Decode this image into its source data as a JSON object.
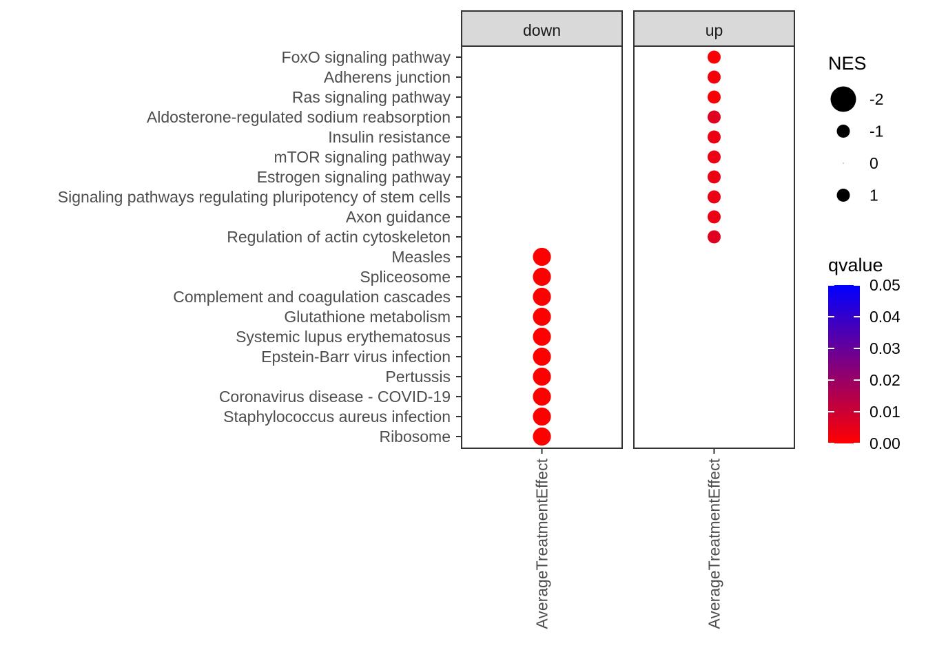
{
  "chart_data": {
    "type": "scatter",
    "facets": [
      "down",
      "up"
    ],
    "x_category": "AverageTreatmentEffect",
    "pathways": [
      "FoxO signaling pathway",
      "Adherens junction",
      "Ras signaling pathway",
      "Aldosterone-regulated sodium reabsorption",
      "Insulin resistance",
      "mTOR signaling pathway",
      "Estrogen signaling pathway",
      "Signaling pathways regulating pluripotency of stem cells",
      "Axon guidance",
      "Regulation of actin cytoskeleton",
      "Measles",
      "Spliceosome",
      "Complement and coagulation cascades",
      "Glutathione metabolism",
      "Systemic lupus erythematosus",
      "Epstein-Barr virus infection",
      "Pertussis",
      "Coronavirus disease - COVID-19",
      "Staphylococcus aureus infection",
      "Ribosome"
    ],
    "points": [
      {
        "facet": "up",
        "pathway": "FoxO signaling pathway",
        "NES": 1.0,
        "qvalue": 0.001
      },
      {
        "facet": "up",
        "pathway": "Adherens junction",
        "NES": 1.0,
        "qvalue": 0.002
      },
      {
        "facet": "up",
        "pathway": "Ras signaling pathway",
        "NES": 1.0,
        "qvalue": 0.001
      },
      {
        "facet": "up",
        "pathway": "Aldosterone-regulated sodium reabsorption",
        "NES": 1.0,
        "qvalue": 0.006
      },
      {
        "facet": "up",
        "pathway": "Insulin resistance",
        "NES": 1.0,
        "qvalue": 0.004
      },
      {
        "facet": "up",
        "pathway": "mTOR signaling pathway",
        "NES": 1.0,
        "qvalue": 0.004
      },
      {
        "facet": "up",
        "pathway": "Estrogen signaling pathway",
        "NES": 1.0,
        "qvalue": 0.004
      },
      {
        "facet": "up",
        "pathway": "Signaling pathways regulating pluripotency of stem cells",
        "NES": 1.0,
        "qvalue": 0.004
      },
      {
        "facet": "up",
        "pathway": "Axon guidance",
        "NES": 1.0,
        "qvalue": 0.004
      },
      {
        "facet": "up",
        "pathway": "Regulation of actin cytoskeleton",
        "NES": 1.0,
        "qvalue": 0.006
      },
      {
        "facet": "down",
        "pathway": "Measles",
        "NES": -1.4,
        "qvalue": 0.0
      },
      {
        "facet": "down",
        "pathway": "Spliceosome",
        "NES": -1.4,
        "qvalue": 0.0
      },
      {
        "facet": "down",
        "pathway": "Complement and coagulation cascades",
        "NES": -1.4,
        "qvalue": 0.0
      },
      {
        "facet": "down",
        "pathway": "Glutathione metabolism",
        "NES": -1.4,
        "qvalue": 0.0
      },
      {
        "facet": "down",
        "pathway": "Systemic lupus erythematosus",
        "NES": -1.4,
        "qvalue": 0.0
      },
      {
        "facet": "down",
        "pathway": "Epstein-Barr virus infection",
        "NES": -1.4,
        "qvalue": 0.0
      },
      {
        "facet": "down",
        "pathway": "Pertussis",
        "NES": -1.4,
        "qvalue": 0.0
      },
      {
        "facet": "down",
        "pathway": "Coronavirus disease - COVID-19",
        "NES": -1.4,
        "qvalue": 0.0
      },
      {
        "facet": "down",
        "pathway": "Staphylococcus aureus infection",
        "NES": -1.4,
        "qvalue": 0.0
      },
      {
        "facet": "down",
        "pathway": "Ribosome",
        "NES": -1.4,
        "qvalue": 0.0
      }
    ],
    "legend_size": {
      "title": "NES",
      "labels": [
        "-2",
        "-1",
        "0",
        "1"
      ],
      "values": [
        -2,
        -1,
        0,
        1
      ]
    },
    "legend_color": {
      "title": "qvalue",
      "labels": [
        "0.05",
        "0.04",
        "0.03",
        "0.02",
        "0.01",
        "0.00"
      ],
      "values": [
        0.05,
        0.04,
        0.03,
        0.02,
        0.01,
        0.0
      ],
      "low_color": "#FF0000",
      "high_color": "#0000FF",
      "range": [
        0.0,
        0.05
      ]
    },
    "legend_placement": "right",
    "grid": true
  }
}
